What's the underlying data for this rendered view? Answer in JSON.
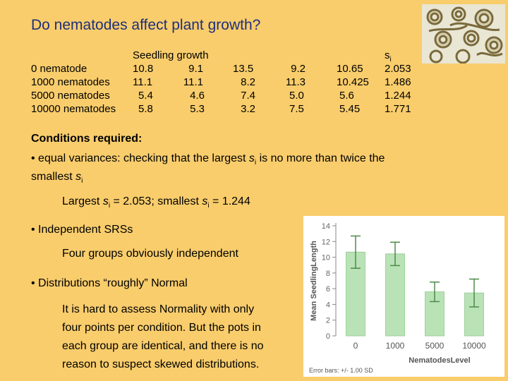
{
  "title": "Do nematodes affect plant growth?",
  "table": {
    "seedling_header": "Seedling growth",
    "si_header": "si",
    "rows": [
      {
        "label": "0 nematode",
        "values": [
          "10.8",
          "9.1",
          "13.5",
          "9.2"
        ],
        "mean": "10.65",
        "si": "2.053"
      },
      {
        "label": "1000 nematodes",
        "values": [
          "11.1",
          "11.1",
          "8.2",
          "11.3"
        ],
        "mean": "10.425",
        "si": "1.486"
      },
      {
        "label": "5000 nematodes",
        "values": [
          "5.4",
          "4.6",
          "7.4",
          "5.0"
        ],
        "mean": "5.6",
        "si": "1.244"
      },
      {
        "label": "10000 nematodes",
        "values": [
          "5.8",
          "5.3",
          "3.2",
          "7.5"
        ],
        "mean": "5.45",
        "si": "1.771"
      }
    ]
  },
  "conditions": {
    "heading": "Conditions required:",
    "variance_line1_pre": "• equal variances: checking that the largest ",
    "variance_line1_post": " is no more than twice the",
    "variance_line2_pre": "smallest ",
    "largest_pre": "Largest ",
    "largest_mid": " = 2.053;  smallest ",
    "largest_post": " = 1.244",
    "srs_bullet": "• Independent SRSs",
    "srs_text": "Four groups obviously independent",
    "normal_bullet": "• Distributions “roughly” Normal",
    "normal_lines": [
      "It is hard to assess Normality with only",
      "four points per condition. But the pots in",
      "each group are identical, and there is no",
      "reason to suspect skewed distributions."
    ],
    "s_letter": "s",
    "sub_i": "i"
  },
  "colors": {
    "background": "#f9cd6c",
    "title": "#1f2f7a",
    "bar_fill": "#b9e3b6",
    "bar_stroke": "#9ccf99",
    "error_bar": "#4d8a4a"
  },
  "chart_data": {
    "type": "bar",
    "categories": [
      "0",
      "1000",
      "5000",
      "10000"
    ],
    "values": [
      10.65,
      10.425,
      5.6,
      5.45
    ],
    "error": [
      2.053,
      1.486,
      1.244,
      1.771
    ],
    "xlabel": "NematodesLevel",
    "ylabel": "Mean SeedlingLength",
    "ylim": [
      0,
      14
    ],
    "yticks": [
      0,
      2,
      4,
      6,
      8,
      10,
      12,
      14
    ],
    "footnote": "Error bars: +/- 1.00 SD",
    "grid": false
  }
}
